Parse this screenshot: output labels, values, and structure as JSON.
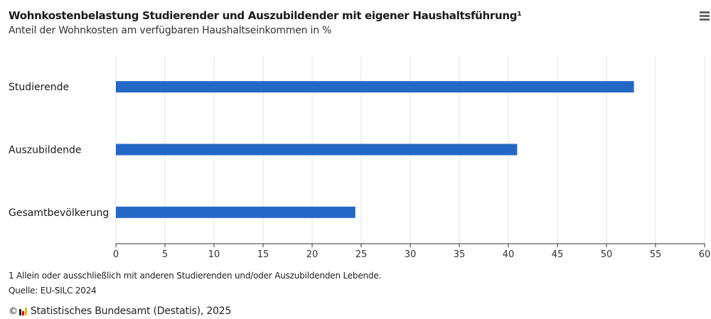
{
  "header": {
    "title": "Wohnkostenbelastung Studierender und Auszubildender mit eigener Haushaltsführung¹",
    "subtitle": "Anteil der Wohnkosten am verfügbaren Haushaltseinkommen in %",
    "menu_icon": "hamburger-menu-icon"
  },
  "chart_data": {
    "type": "bar",
    "orientation": "horizontal",
    "title": "Wohnkostenbelastung Studierender und Auszubildender mit eigener Haushaltsführung¹",
    "subtitle": "Anteil der Wohnkosten am verfügbaren Haushaltseinkommen in %",
    "categories": [
      "Studierende",
      "Auszubildende",
      "Gesamtbevölkerung"
    ],
    "values": [
      52.8,
      40.9,
      24.4
    ],
    "xlabel": "",
    "ylabel": "",
    "xlim": [
      0,
      60
    ],
    "xticks": [
      0,
      5,
      10,
      15,
      20,
      25,
      30,
      35,
      40,
      45,
      50,
      55,
      60
    ],
    "grid": true,
    "bar_color": "#2468c5"
  },
  "footer": {
    "note": "1 Allein oder ausschließlich mit anderen Studierenden und/oder Auszubildenden Lebende.",
    "source": "Quelle: EU-SILC 2024",
    "copyright_symbol": "©",
    "credit": "Statistisches Bundesamt (Destatis), 2025"
  }
}
